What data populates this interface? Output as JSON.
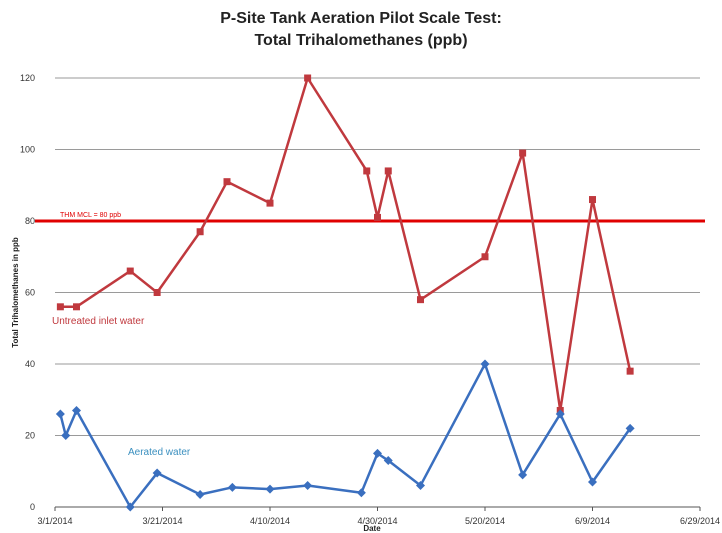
{
  "chart_data": {
    "type": "line",
    "title": "P-Site Tank Aeration Pilot Scale Test:",
    "subtitle": "Total Trihalomethanes (ppb)",
    "xlabel": "Date",
    "ylabel": "Total Trihalomethanes in ppb",
    "x_ticks": [
      "3/1/2014",
      "3/21/2014",
      "4/10/2014",
      "4/30/2014",
      "5/20/2014",
      "6/9/2014",
      "6/29/2014"
    ],
    "y_ticks": [
      "0",
      "20",
      "40",
      "60",
      "80",
      "100",
      "120"
    ],
    "xlim": [
      "2014-03-01",
      "2014-06-29"
    ],
    "ylim": [
      0,
      120
    ],
    "grid": "horizontal",
    "reference_line": {
      "label": "THM MCL = 80 ppb",
      "value": 80,
      "color": "#e00000"
    },
    "series": [
      {
        "name": "Untreated inlet water",
        "color": "#c0393e",
        "marker": "square",
        "x": [
          "2014-03-02",
          "2014-03-05",
          "2014-03-15",
          "2014-03-20",
          "2014-03-28",
          "2014-04-02",
          "2014-04-10",
          "2014-04-17",
          "2014-04-28",
          "2014-04-30",
          "2014-05-02",
          "2014-05-08",
          "2014-05-20",
          "2014-05-27",
          "2014-06-03",
          "2014-06-09",
          "2014-06-16"
        ],
        "y": [
          56,
          56,
          66,
          60,
          77,
          91,
          85,
          120,
          94,
          81,
          94,
          58,
          70,
          99,
          27,
          86,
          38
        ]
      },
      {
        "name": "Aerated water",
        "color": "#3a6fbf",
        "marker": "diamond",
        "x": [
          "2014-03-02",
          "2014-03-03",
          "2014-03-05",
          "2014-03-15",
          "2014-03-20",
          "2014-03-28",
          "2014-04-03",
          "2014-04-10",
          "2014-04-17",
          "2014-04-27",
          "2014-04-30",
          "2014-05-02",
          "2014-05-08",
          "2014-05-20",
          "2014-05-27",
          "2014-06-03",
          "2014-06-09",
          "2014-06-16"
        ],
        "y": [
          26,
          20,
          27,
          0,
          9.5,
          3.5,
          5.5,
          5,
          6,
          4,
          15,
          13,
          6,
          40,
          9,
          26,
          7,
          22
        ]
      }
    ]
  }
}
